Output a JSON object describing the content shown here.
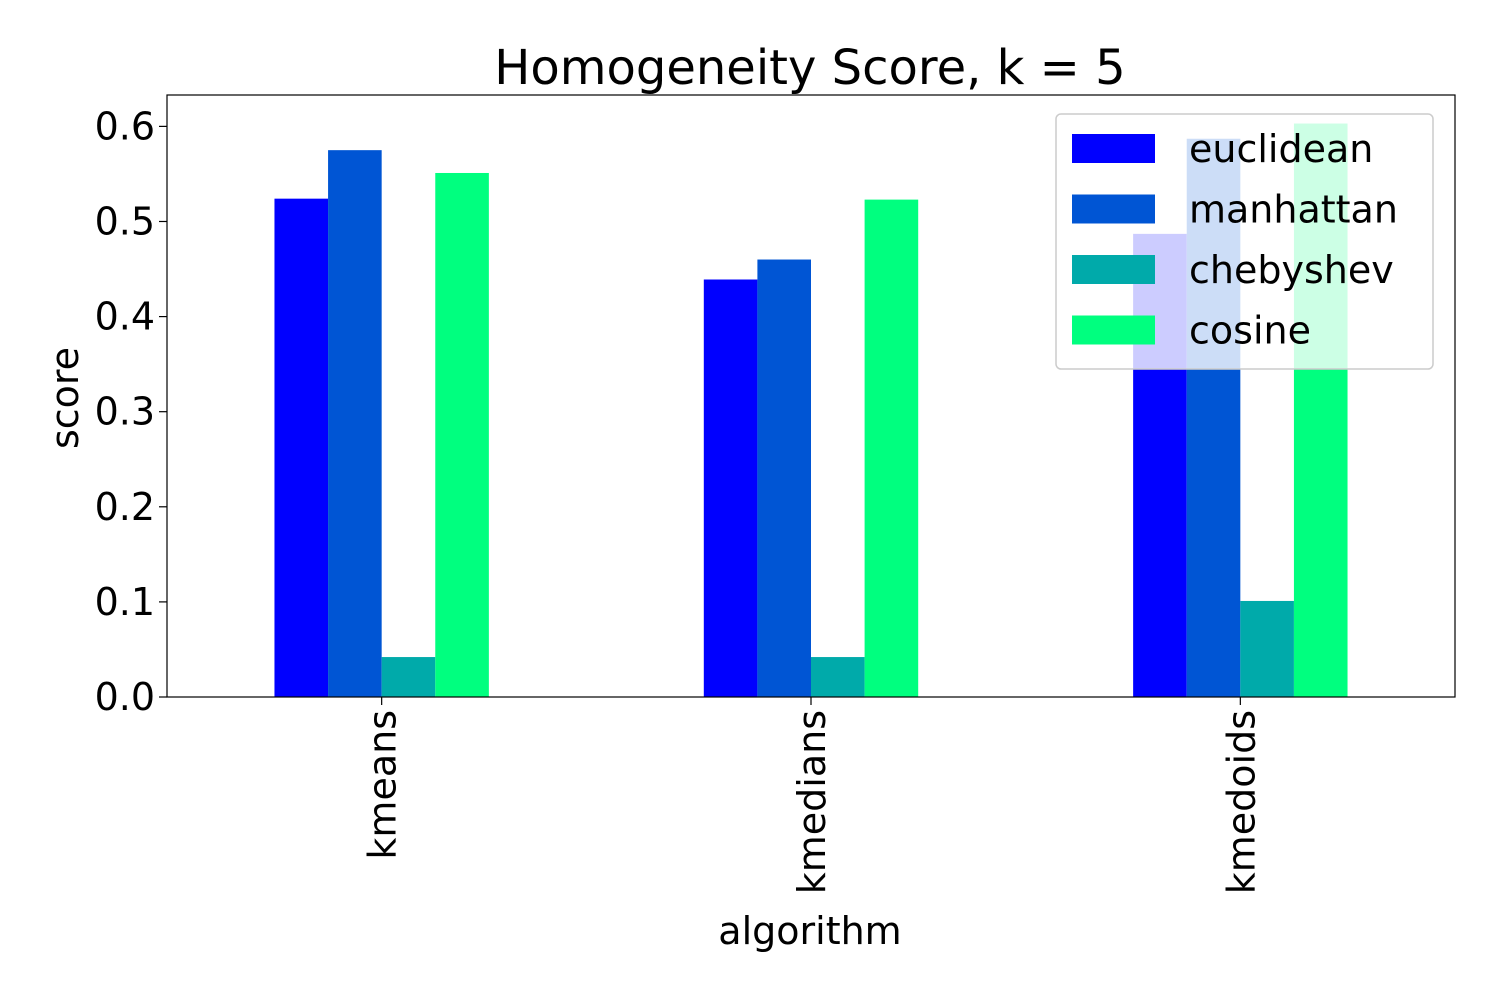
{
  "chart_data": {
    "type": "bar",
    "title": "Homogeneity Score, k = 5",
    "xlabel": "algorithm",
    "ylabel": "score",
    "ylim": [
      0,
      0.633
    ],
    "yticks": [
      "0.0",
      "0.1",
      "0.2",
      "0.3",
      "0.4",
      "0.5",
      "0.6"
    ],
    "categories": [
      "kmeans",
      "kmedians",
      "kmedoids"
    ],
    "series": [
      {
        "name": "euclidean",
        "color": "#0000ff",
        "values": [
          0.524,
          0.439,
          0.487
        ]
      },
      {
        "name": "manhattan",
        "color": "#0055d4",
        "values": [
          0.575,
          0.46,
          0.587
        ]
      },
      {
        "name": "chebyshev",
        "color": "#00aaaa",
        "values": [
          0.042,
          0.042,
          0.101
        ]
      },
      {
        "name": "cosine",
        "color": "#00ff7f",
        "values": [
          0.551,
          0.523,
          0.603
        ]
      }
    ],
    "legend_position": "top-right",
    "grid": false
  }
}
